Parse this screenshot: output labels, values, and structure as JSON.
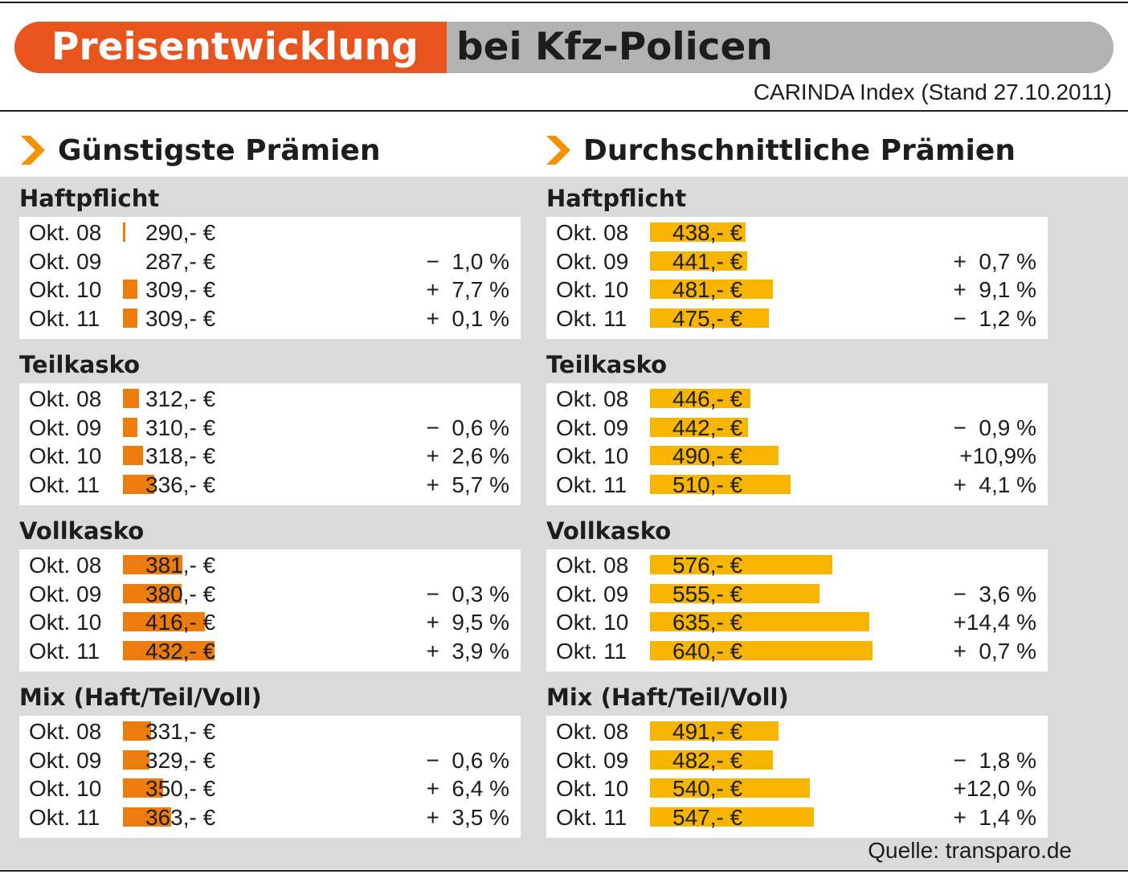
{
  "header": {
    "title_part1": "Preisentwicklung",
    "title_part2": "bei Kfz-Policen",
    "subtitle": "CARINDA Index (Stand 27.10.2011)"
  },
  "colors": {
    "title_orange": "#e8541d",
    "title_grey": "#b2b2b2",
    "bar_cheapest": "#ec7c0d",
    "bar_average": "#f7b500",
    "arrow": "#f39200",
    "panel_bg": "#dadada"
  },
  "columns": [
    {
      "heading": "Günstigste Prämien"
    },
    {
      "heading": "Durchschnittliche Prämien"
    }
  ],
  "footer": {
    "source": "Quelle: transparo.de"
  },
  "chart_data": [
    {
      "type": "bar",
      "title": "Günstigste Prämien",
      "unit": "€",
      "categories": [
        "Okt. 08",
        "Okt. 09",
        "Okt. 10",
        "Okt. 11"
      ],
      "groups": [
        {
          "name": "Haftpflicht",
          "values": [
            290,
            287,
            309,
            309
          ],
          "labels": [
            "290,- €",
            "287,- €",
            "309,- €",
            "309,- €"
          ],
          "changes": [
            "",
            "−  1,0 %",
            "+  7,7 %",
            "+  0,1 %"
          ]
        },
        {
          "name": "Teilkasko",
          "values": [
            312,
            310,
            318,
            336
          ],
          "labels": [
            "312,- €",
            "310,- €",
            "318,- €",
            "336,- €"
          ],
          "changes": [
            "",
            "−  0,6 %",
            "+  2,6 %",
            "+  5,7 %"
          ]
        },
        {
          "name": "Vollkasko",
          "values": [
            381,
            380,
            416,
            432
          ],
          "labels": [
            "381,- €",
            "380,- €",
            "416,- €",
            "432,- €"
          ],
          "changes": [
            "",
            "−  0,3 %",
            "+  9,5 %",
            "+  3,9 %"
          ]
        },
        {
          "name": "Mix (Haft/Teil/Voll)",
          "values": [
            331,
            329,
            350,
            363
          ],
          "labels": [
            "331,- €",
            "329,- €",
            "350,- €",
            "363,- €"
          ],
          "changes": [
            "",
            "−  0,6 %",
            "+  6,4 %",
            "+  3,5 %"
          ]
        }
      ]
    },
    {
      "type": "bar",
      "title": "Durchschnittliche Prämien",
      "unit": "€",
      "categories": [
        "Okt. 08",
        "Okt. 09",
        "Okt. 10",
        "Okt. 11"
      ],
      "groups": [
        {
          "name": "Haftpflicht",
          "values": [
            438,
            441,
            481,
            475
          ],
          "labels": [
            "438,- €",
            "441,- €",
            "481,- €",
            "475,- €"
          ],
          "changes": [
            "",
            "+  0,7 %",
            "+  9,1 %",
            "−  1,2 %"
          ]
        },
        {
          "name": "Teilkasko",
          "values": [
            446,
            442,
            490,
            510
          ],
          "labels": [
            "446,- €",
            "442,- €",
            "490,- €",
            "510,- €"
          ],
          "changes": [
            "",
            "−  0,9 %",
            "+10,9%",
            "+  4,1 %"
          ]
        },
        {
          "name": "Vollkasko",
          "values": [
            576,
            555,
            635,
            640
          ],
          "labels": [
            "576,- €",
            "555,- €",
            "635,- €",
            "640,- €"
          ],
          "changes": [
            "",
            "−  3,6 %",
            "+14,4 %",
            "+  0,7 %"
          ]
        },
        {
          "name": "Mix (Haft/Teil/Voll)",
          "values": [
            491,
            482,
            540,
            547
          ],
          "labels": [
            "491,- €",
            "482,- €",
            "540,- €",
            "547,- €"
          ],
          "changes": [
            "",
            "−  1,8 %",
            "+12,0 %",
            "+  1,4 %"
          ]
        }
      ]
    }
  ]
}
